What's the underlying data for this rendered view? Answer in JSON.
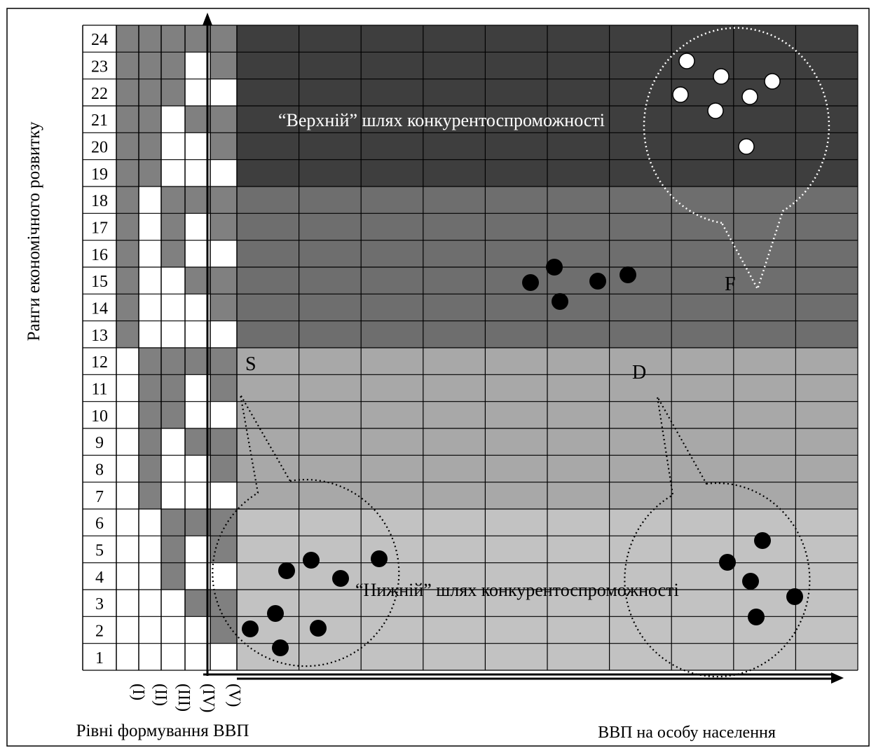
{
  "rank_labels": [
    "1",
    "2",
    "3",
    "4",
    "5",
    "6",
    "7",
    "8",
    "9",
    "10",
    "11",
    "12",
    "13",
    "14",
    "15",
    "16",
    "17",
    "18",
    "19",
    "20",
    "21",
    "22",
    "23",
    "24"
  ],
  "level_labels": [
    "(I)",
    "(II)",
    "(III)",
    "(IV)",
    "(V)"
  ],
  "level_columns": [
    [
      "W",
      "W",
      "W",
      "W",
      "W",
      "W",
      "W",
      "W",
      "W",
      "W",
      "W",
      "W",
      "G",
      "G",
      "G",
      "G",
      "G",
      "G",
      "G",
      "G",
      "G",
      "G",
      "G",
      "G"
    ],
    [
      "W",
      "W",
      "W",
      "W",
      "W",
      "W",
      "G",
      "G",
      "G",
      "G",
      "G",
      "G",
      "W",
      "W",
      "W",
      "W",
      "W",
      "W",
      "G",
      "G",
      "G",
      "G",
      "G",
      "G"
    ],
    [
      "W",
      "W",
      "W",
      "G",
      "G",
      "G",
      "W",
      "W",
      "W",
      "G",
      "G",
      "G",
      "W",
      "W",
      "W",
      "G",
      "G",
      "G",
      "W",
      "W",
      "W",
      "G",
      "G",
      "G"
    ],
    [
      "W",
      "W",
      "G",
      "W",
      "W",
      "G",
      "W",
      "W",
      "G",
      "W",
      "W",
      "G",
      "W",
      "W",
      "G",
      "W",
      "W",
      "G",
      "W",
      "W",
      "G",
      "W",
      "W",
      "G"
    ],
    [
      "W",
      "G",
      "G",
      "W",
      "G",
      "G",
      "W",
      "G",
      "G",
      "W",
      "G",
      "G",
      "W",
      "G",
      "G",
      "W",
      "G",
      "G",
      "W",
      "G",
      "G",
      "W",
      "G",
      "G"
    ]
  ],
  "colors": {
    "band_upper": "#3e3e3e",
    "band_middle": "#6e6e6e",
    "band_lower_mid": "#a8a8a8",
    "band_lower": "#c2c2c2",
    "level_cell_filled": "#808080",
    "grid_line": "#000000",
    "point_black": "#000000",
    "point_white": "#ffffff"
  },
  "labels": {
    "y_axis_title": "Ранги економічного розвитку",
    "x_axis_title": "ВВП на особу населення",
    "levels_title": "Рівні формування ВВП",
    "upper_path": "“Верхній” шлях конкурентоспроможності",
    "lower_path": "“Нижній” шлях конкурентоспроможності",
    "point_s": "S",
    "point_d": "D",
    "point_f": "F"
  },
  "clusters": {
    "f_white_points": 7,
    "middle_black_points": 5,
    "s_black_points": 8,
    "d_black_points": 5
  }
}
